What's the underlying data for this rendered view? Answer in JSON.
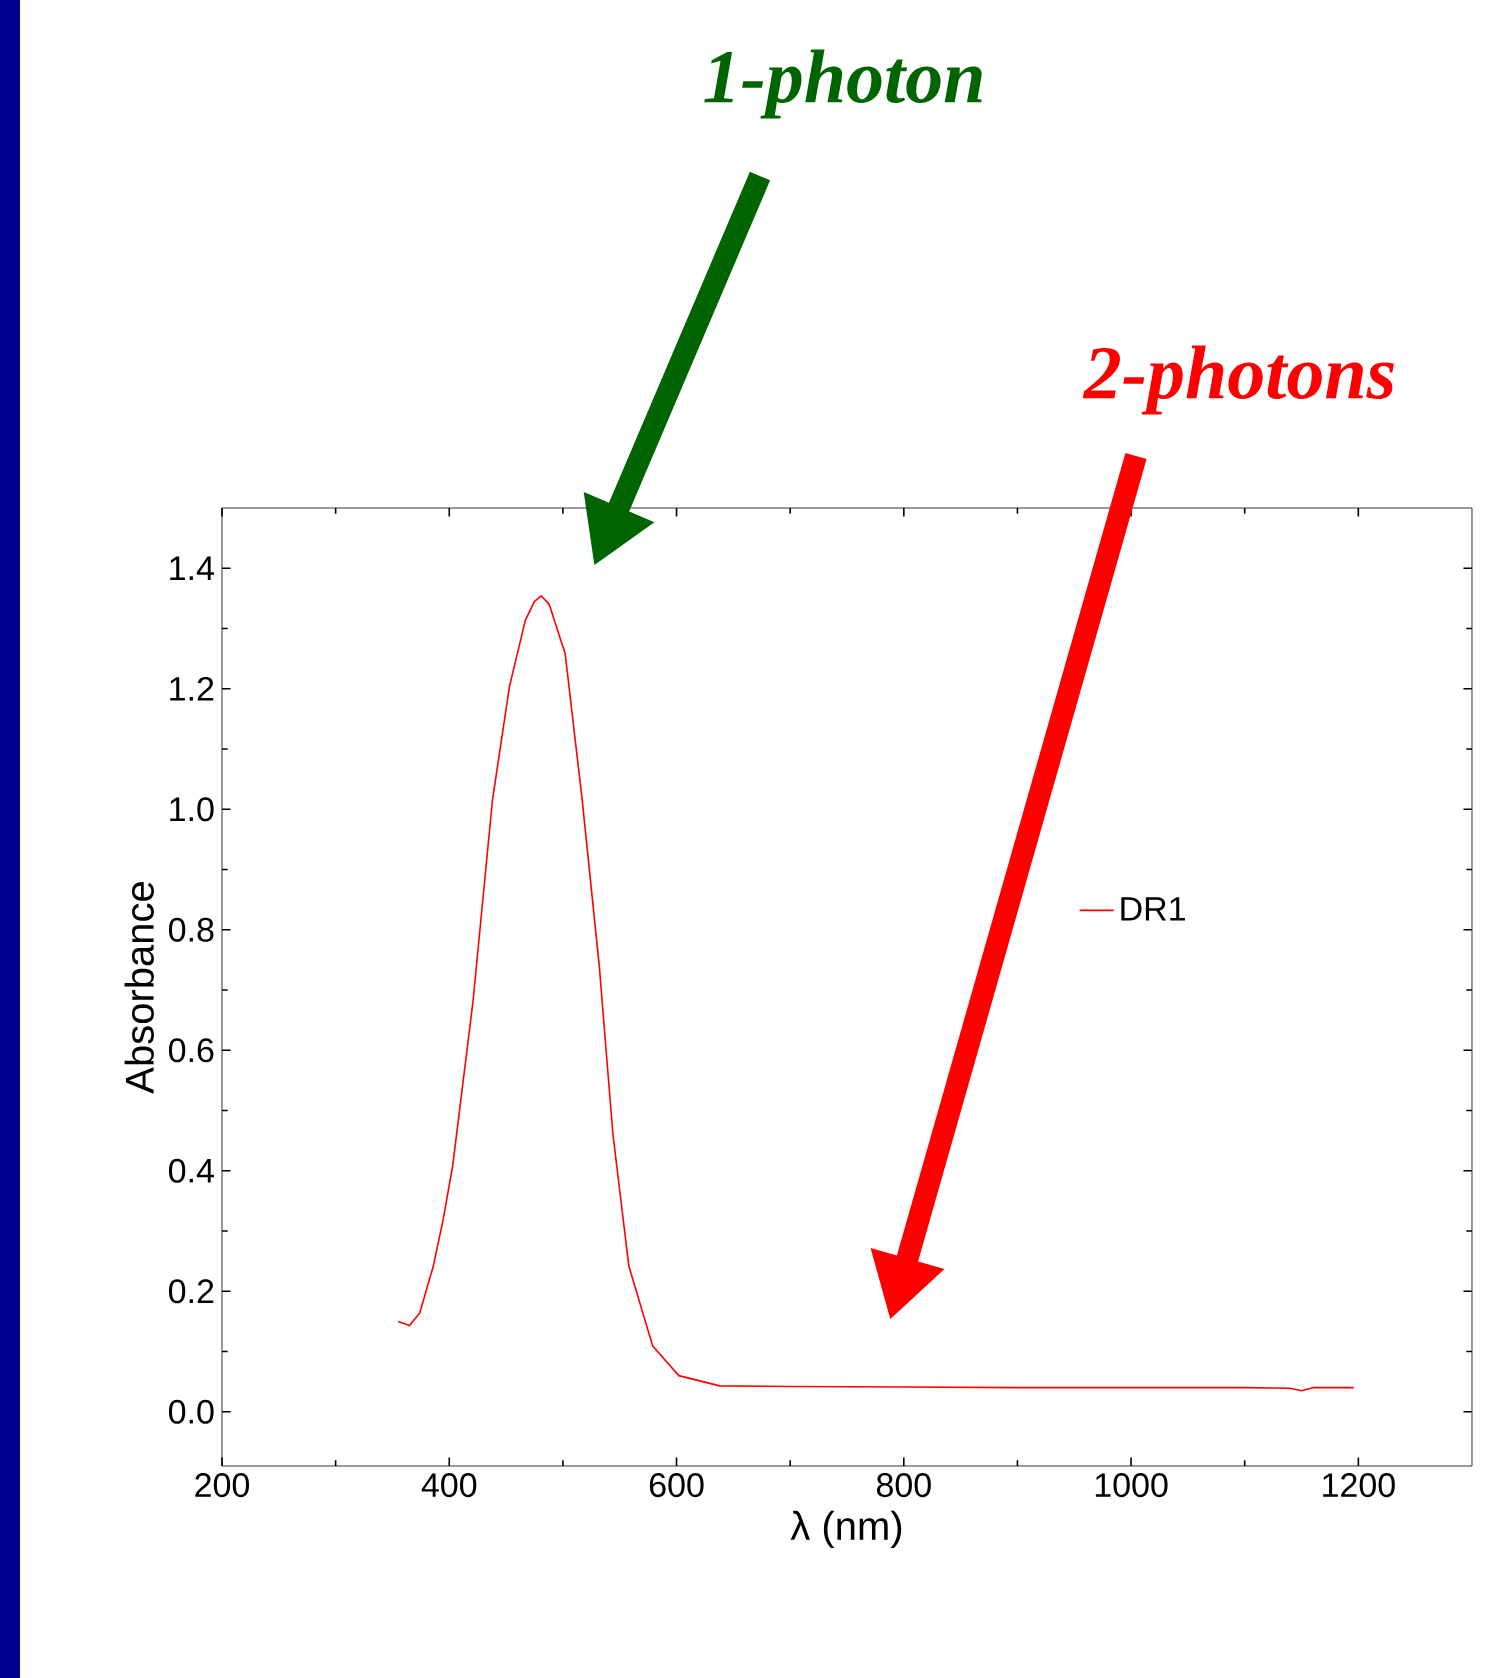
{
  "chart_data": {
    "type": "line",
    "xlabel": "λ (nm)",
    "ylabel": "Absorbance",
    "xlim": [
      200,
      1300
    ],
    "ylim": [
      -0.09,
      1.5
    ],
    "xticks": [
      200,
      400,
      600,
      800,
      1000,
      1200
    ],
    "yticks": [
      {
        "value": 0,
        "label": "0.0"
      },
      {
        "value": 0.2,
        "label": "0.2"
      },
      {
        "value": 0.4,
        "label": "0.4"
      },
      {
        "value": 0.6,
        "label": "0.6"
      },
      {
        "value": 0.8,
        "label": "0.8"
      },
      {
        "value": 1.0,
        "label": "1.0"
      },
      {
        "value": 1.2,
        "label": "1.2"
      },
      {
        "value": 1.4,
        "label": "1.4"
      }
    ],
    "legend": "right",
    "series": [
      {
        "name": "DR1",
        "color": "#ff0000",
        "x": [
          355,
          365,
          374,
          386,
          394.5,
          403,
          421,
          438,
          453,
          467,
          475,
          481,
          488,
          502,
          517,
          532,
          544,
          558,
          579,
          602,
          638,
          700,
          800,
          900,
          1000,
          1100,
          1140,
          1150,
          1160,
          1196
        ],
        "values": [
          0.15,
          0.143,
          0.164,
          0.242,
          0.318,
          0.408,
          0.683,
          1.015,
          1.204,
          1.314,
          1.345,
          1.354,
          1.34,
          1.258,
          1.015,
          0.74,
          0.461,
          0.242,
          0.109,
          0.06,
          0.043,
          0.042,
          0.041,
          0.04,
          0.04,
          0.04,
          0.039,
          0.035,
          0.04,
          0.04
        ]
      }
    ],
    "annotations": [
      "*1-photon*",
      "*2-photons*"
    ]
  }
}
